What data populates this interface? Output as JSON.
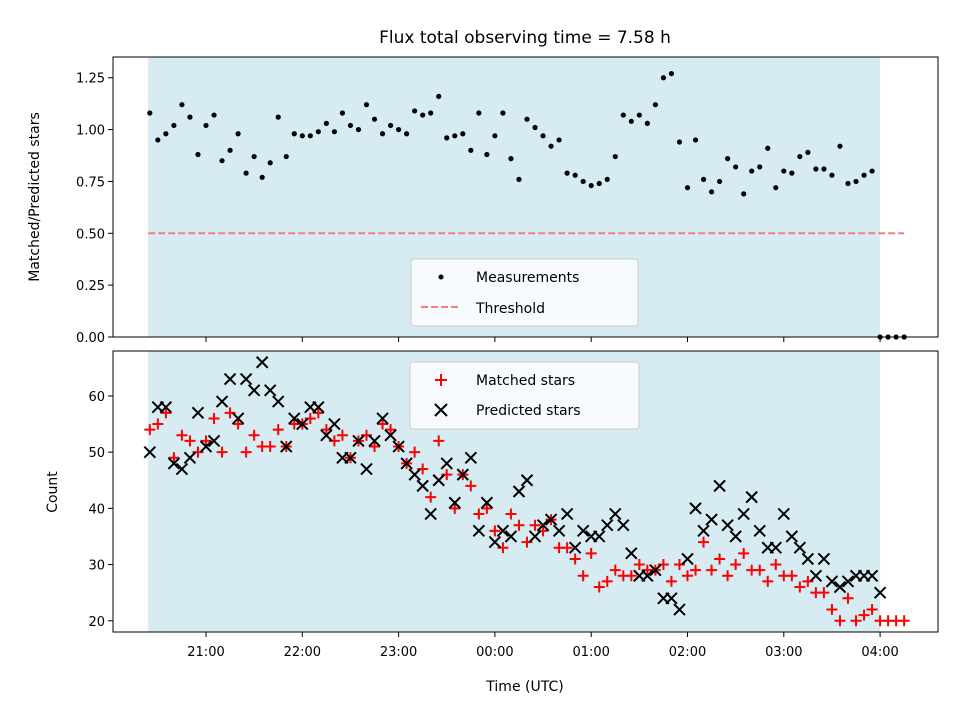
{
  "chart_data": [
    {
      "type": "scatter",
      "title": "Flux total observing time = 7.58 h",
      "ylabel": "Matched/Predicted stars",
      "xlabel": "",
      "ylim": [
        0,
        1.35
      ],
      "yticks": [
        "0.00",
        "0.25",
        "0.50",
        "0.75",
        "1.00",
        "1.25"
      ],
      "observing_window": [
        "20:24",
        "04:00"
      ],
      "window_color": "#add8e6",
      "legend_position": "lower center",
      "threshold": {
        "name": "Threshold",
        "value": 0.5,
        "x_range": [
          "20:24",
          "04:15"
        ],
        "color": "#f08080"
      },
      "series": [
        {
          "name": "Measurements",
          "color": "#000000",
          "marker": "dot",
          "x": [
            "20:25",
            "20:30",
            "20:35",
            "20:40",
            "20:45",
            "20:50",
            "20:55",
            "21:00",
            "21:05",
            "21:10",
            "21:15",
            "21:20",
            "21:25",
            "21:30",
            "21:35",
            "21:40",
            "21:45",
            "21:50",
            "21:55",
            "22:00",
            "22:05",
            "22:10",
            "22:15",
            "22:20",
            "22:25",
            "22:30",
            "22:35",
            "22:40",
            "22:45",
            "22:50",
            "22:55",
            "23:00",
            "23:05",
            "23:10",
            "23:15",
            "23:20",
            "23:25",
            "23:30",
            "23:35",
            "23:40",
            "23:45",
            "23:50",
            "23:55",
            "00:00",
            "00:05",
            "00:10",
            "00:15",
            "00:20",
            "00:25",
            "00:30",
            "00:35",
            "00:40",
            "00:45",
            "00:50",
            "00:55",
            "01:00",
            "01:05",
            "01:10",
            "01:15",
            "01:20",
            "01:25",
            "01:30",
            "01:35",
            "01:40",
            "01:45",
            "01:50",
            "01:55",
            "02:00",
            "02:05",
            "02:10",
            "02:15",
            "02:20",
            "02:25",
            "02:30",
            "02:35",
            "02:40",
            "02:45",
            "02:50",
            "02:55",
            "03:00",
            "03:05",
            "03:10",
            "03:15",
            "03:20",
            "03:25",
            "03:30",
            "03:35",
            "03:40",
            "03:45",
            "03:50",
            "03:55",
            "04:00",
            "04:05",
            "04:10",
            "04:15"
          ],
          "values": [
            1.08,
            0.95,
            0.98,
            1.02,
            1.12,
            1.06,
            0.88,
            1.02,
            1.07,
            0.85,
            0.9,
            0.98,
            0.79,
            0.87,
            0.77,
            0.84,
            1.06,
            0.87,
            0.98,
            0.97,
            0.97,
            0.99,
            1.03,
            0.99,
            1.08,
            1.02,
            1.0,
            1.12,
            1.05,
            0.98,
            1.02,
            1.0,
            0.98,
            1.09,
            1.07,
            1.08,
            1.16,
            0.96,
            0.97,
            0.98,
            0.9,
            1.08,
            0.88,
            0.97,
            1.08,
            0.86,
            0.76,
            1.05,
            1.01,
            0.97,
            0.92,
            0.95,
            0.79,
            0.78,
            0.75,
            0.73,
            0.74,
            0.76,
            0.87,
            1.07,
            1.04,
            1.07,
            1.03,
            1.12,
            1.25,
            1.27,
            0.94,
            0.72,
            0.95,
            0.76,
            0.7,
            0.75,
            0.86,
            0.82,
            0.69,
            0.8,
            0.82,
            0.91,
            0.72,
            0.8,
            0.79,
            0.87,
            0.89,
            0.81,
            0.81,
            0.78,
            0.92,
            0.74,
            0.75,
            0.78,
            0.8,
            0.0,
            0.0,
            0.0,
            0.0
          ]
        }
      ]
    },
    {
      "type": "scatter",
      "title": "",
      "xlabel": "Time (UTC)",
      "ylabel": "Count",
      "ylim": [
        18,
        68
      ],
      "yticks": [
        "20",
        "30",
        "40",
        "50",
        "60"
      ],
      "xticks": [
        "21:00",
        "22:00",
        "23:00",
        "00:00",
        "01:00",
        "02:00",
        "03:00",
        "04:00"
      ],
      "observing_window": [
        "20:24",
        "04:00"
      ],
      "window_color": "#add8e6",
      "legend_position": "upper center",
      "series": [
        {
          "name": "Matched stars",
          "color": "#ff0000",
          "marker": "plus",
          "x": [
            "20:25",
            "20:30",
            "20:35",
            "20:40",
            "20:45",
            "20:50",
            "20:55",
            "21:00",
            "21:05",
            "21:10",
            "21:15",
            "21:20",
            "21:25",
            "21:30",
            "21:35",
            "21:40",
            "21:45",
            "21:50",
            "21:55",
            "22:00",
            "22:05",
            "22:10",
            "22:15",
            "22:20",
            "22:25",
            "22:30",
            "22:35",
            "22:40",
            "22:45",
            "22:50",
            "22:55",
            "23:00",
            "23:05",
            "23:10",
            "23:15",
            "23:20",
            "23:25",
            "23:30",
            "23:35",
            "23:40",
            "23:45",
            "23:50",
            "23:55",
            "00:00",
            "00:05",
            "00:10",
            "00:15",
            "00:20",
            "00:25",
            "00:30",
            "00:35",
            "00:40",
            "00:45",
            "00:50",
            "00:55",
            "01:00",
            "01:05",
            "01:10",
            "01:15",
            "01:20",
            "01:25",
            "01:30",
            "01:35",
            "01:40",
            "01:45",
            "01:50",
            "01:55",
            "02:00",
            "02:05",
            "02:10",
            "02:15",
            "02:20",
            "02:25",
            "02:30",
            "02:35",
            "02:40",
            "02:45",
            "02:50",
            "02:55",
            "03:00",
            "03:05",
            "03:10",
            "03:15",
            "03:20",
            "03:25",
            "03:30",
            "03:35",
            "03:40",
            "03:45",
            "03:50",
            "03:55",
            "04:00",
            "04:05",
            "04:10",
            "04:15"
          ],
          "values": [
            54,
            55,
            57,
            49,
            53,
            52,
            50,
            52,
            56,
            50,
            57,
            55,
            50,
            53,
            51,
            51,
            54,
            51,
            55,
            55,
            56,
            57,
            54,
            52,
            53,
            49,
            52,
            53,
            51,
            55,
            54,
            51,
            48,
            50,
            47,
            42,
            52,
            46,
            40,
            46,
            44,
            39,
            40,
            36,
            33,
            39,
            37,
            34,
            37,
            36,
            38,
            33,
            33,
            31,
            28,
            32,
            26,
            27,
            29,
            28,
            28,
            30,
            29,
            29,
            30,
            27,
            30,
            28,
            29,
            34,
            29,
            31,
            28,
            30,
            32,
            29,
            29,
            27,
            30,
            28,
            28,
            26,
            27,
            25,
            25,
            22,
            20,
            24,
            20,
            21,
            22,
            20,
            20,
            20,
            20
          ]
        },
        {
          "name": "Predicted stars",
          "color": "#000000",
          "marker": "x",
          "x": [
            "20:25",
            "20:30",
            "20:35",
            "20:40",
            "20:45",
            "20:50",
            "20:55",
            "21:00",
            "21:05",
            "21:10",
            "21:15",
            "21:20",
            "21:25",
            "21:30",
            "21:35",
            "21:40",
            "21:45",
            "21:50",
            "21:55",
            "22:00",
            "22:05",
            "22:10",
            "22:15",
            "22:20",
            "22:25",
            "22:30",
            "22:35",
            "22:40",
            "22:45",
            "22:50",
            "22:55",
            "23:00",
            "23:05",
            "23:10",
            "23:15",
            "23:20",
            "23:25",
            "23:30",
            "23:35",
            "23:40",
            "23:45",
            "23:50",
            "23:55",
            "00:00",
            "00:05",
            "00:10",
            "00:15",
            "00:20",
            "00:25",
            "00:30",
            "00:35",
            "00:40",
            "00:45",
            "00:50",
            "00:55",
            "01:00",
            "01:05",
            "01:10",
            "01:15",
            "01:20",
            "01:25",
            "01:30",
            "01:35",
            "01:40",
            "01:45",
            "01:50",
            "01:55",
            "02:00",
            "02:05",
            "02:10",
            "02:15",
            "02:20",
            "02:25",
            "02:30",
            "02:35",
            "02:40",
            "02:45",
            "02:50",
            "02:55",
            "03:00",
            "03:05",
            "03:10",
            "03:15",
            "03:20",
            "03:25",
            "03:30",
            "03:35",
            "03:40",
            "03:45",
            "03:50",
            "03:55",
            "04:00"
          ],
          "values": [
            50,
            58,
            58,
            48,
            47,
            49,
            57,
            51,
            52,
            59,
            63,
            56,
            63,
            61,
            66,
            61,
            59,
            51,
            56,
            55,
            58,
            58,
            53,
            55,
            49,
            49,
            52,
            47,
            52,
            56,
            53,
            51,
            48,
            46,
            44,
            39,
            45,
            48,
            41,
            46,
            49,
            36,
            41,
            34,
            36,
            35,
            43,
            45,
            35,
            37,
            38,
            36,
            39,
            33,
            36,
            35,
            35,
            37,
            39,
            37,
            32,
            28,
            28,
            29,
            24,
            24,
            22,
            31,
            40,
            36,
            38,
            44,
            37,
            35,
            39,
            42,
            36,
            33,
            33,
            39,
            35,
            33,
            31,
            28,
            31,
            27,
            26,
            27,
            28,
            28,
            28,
            25
          ]
        }
      ]
    }
  ]
}
